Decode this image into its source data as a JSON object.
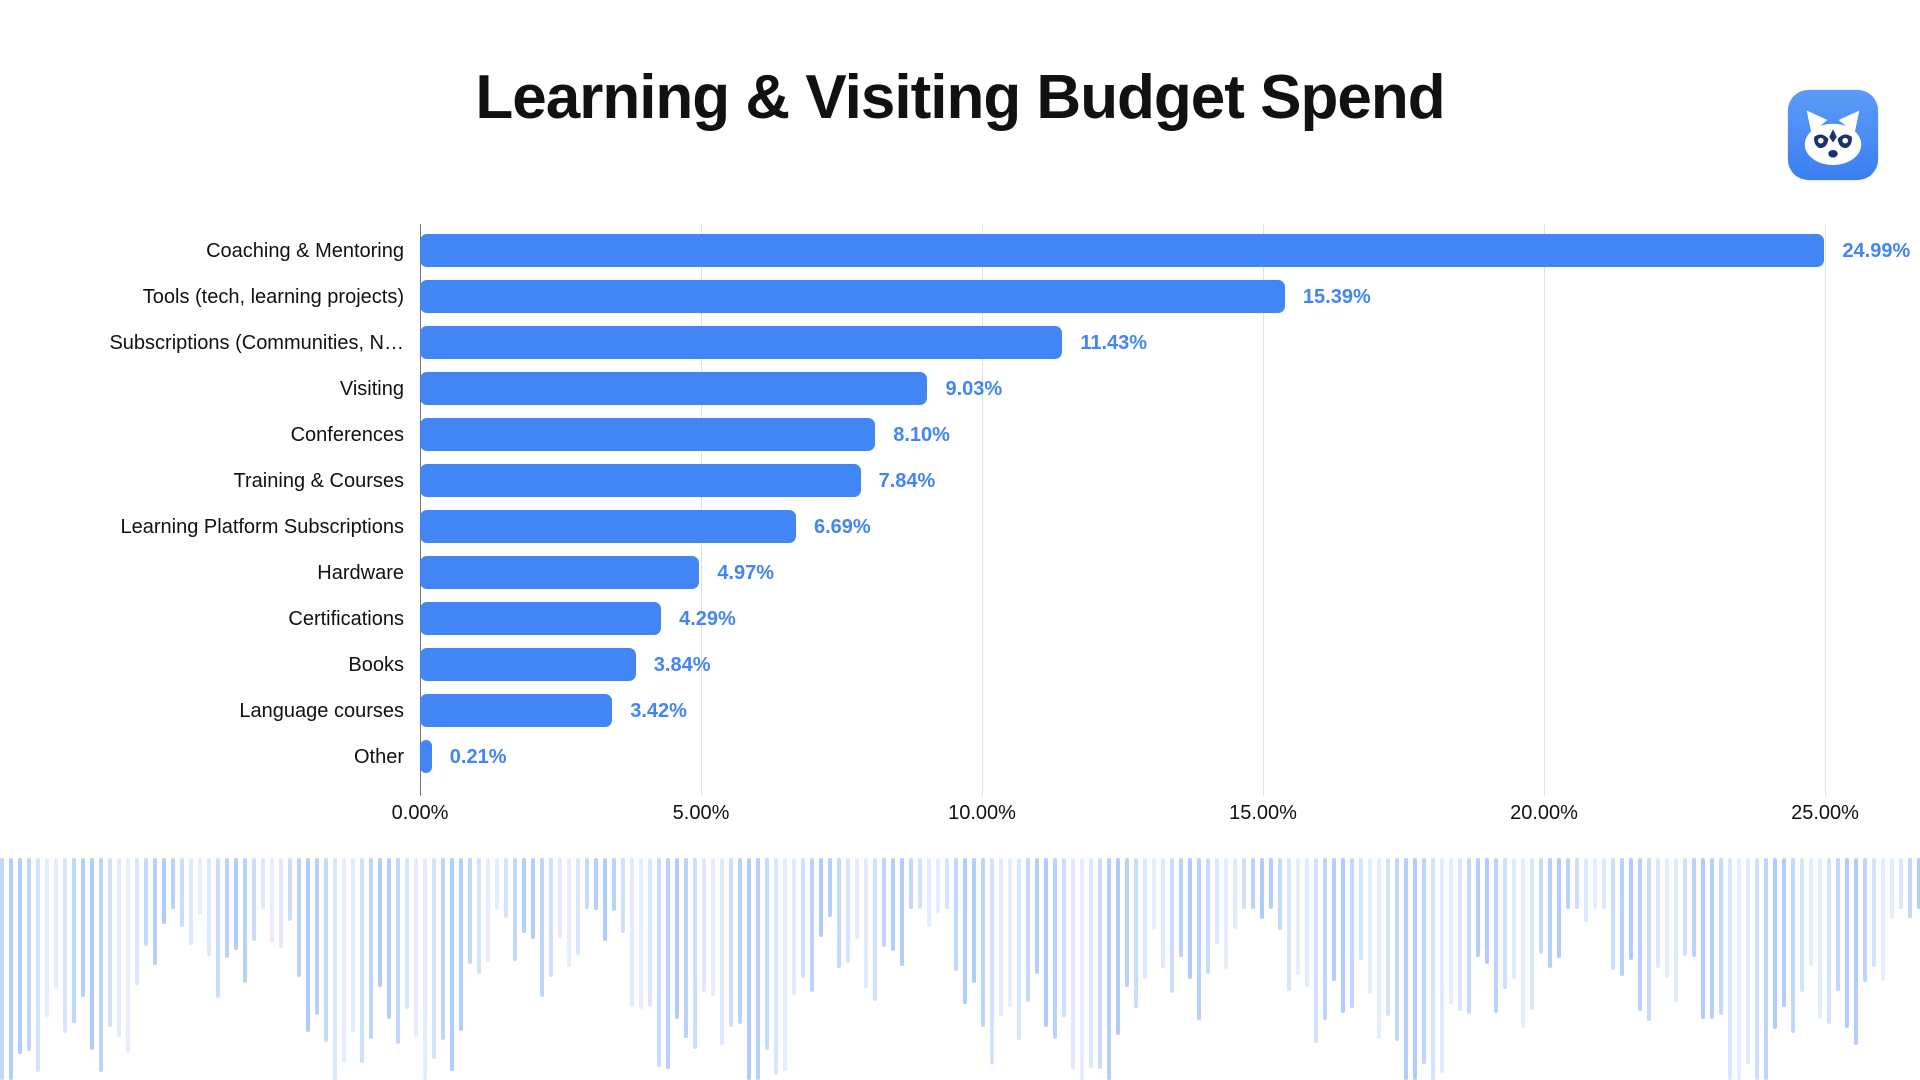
{
  "header": {
    "title": "Learning & Visiting Budget Spend",
    "logo": {
      "icon": "raccoon-logo-icon",
      "bg_color": "#4a8cf7",
      "face_color": "#ffffff",
      "mask_color": "#17346b"
    }
  },
  "chart_data": {
    "type": "bar",
    "orientation": "horizontal",
    "title": "Learning & Visiting Budget Spend",
    "categories": [
      "Coaching & Mentoring",
      "Tools (tech, learning projects)",
      "Subscriptions (Communities, N…",
      "Visiting",
      "Conferences",
      "Training & Courses",
      "Learning Platform Subscriptions",
      "Hardware",
      "Certifications",
      "Books",
      "Language courses",
      "Other"
    ],
    "values": [
      24.99,
      15.39,
      11.43,
      9.03,
      8.1,
      7.84,
      6.69,
      4.97,
      4.29,
      3.84,
      3.42,
      0.21
    ],
    "value_labels": [
      "24.99%",
      "15.39%",
      "11.43%",
      "9.03%",
      "8.10%",
      "7.84%",
      "6.69%",
      "4.97%",
      "4.29%",
      "3.84%",
      "3.42%",
      "0.21%"
    ],
    "x_ticks": [
      "0.00%",
      "5.00%",
      "10.00%",
      "15.00%",
      "20.00%",
      "25.00%"
    ],
    "x_tick_values": [
      0,
      5,
      10,
      15,
      20,
      25
    ],
    "xlim": [
      0,
      25
    ],
    "xlabel": "",
    "ylabel": "",
    "grid": true,
    "bar_color": "#4285f4",
    "value_label_color": "#4285f4",
    "gridline_color": "#e0e0e0",
    "axis_line_color": "#757575",
    "legend": "none"
  },
  "decoration": {
    "waveform_color": "#4285f4"
  }
}
